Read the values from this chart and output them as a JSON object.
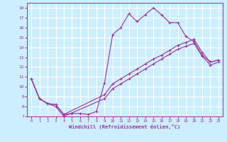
{
  "xlabel": "Windchill (Refroidissement éolien,°C)",
  "bg_color": "#cceeff",
  "line_color": "#993399",
  "grid_color": "#ffffff",
  "xlim": [
    -0.5,
    23.5
  ],
  "ylim": [
    7,
    18.5
  ],
  "xticks": [
    0,
    1,
    2,
    3,
    4,
    5,
    6,
    7,
    8,
    9,
    10,
    11,
    12,
    13,
    14,
    15,
    16,
    17,
    18,
    19,
    20,
    21,
    22,
    23
  ],
  "yticks": [
    7,
    8,
    9,
    10,
    11,
    12,
    13,
    14,
    15,
    16,
    17,
    18
  ],
  "line1_x": [
    0,
    1,
    2,
    3,
    4,
    5,
    6,
    7,
    8,
    9,
    10,
    11,
    12,
    13,
    14,
    15,
    16,
    17,
    18,
    19,
    20,
    21,
    22,
    23
  ],
  "line1_y": [
    10.8,
    8.8,
    8.3,
    8.2,
    7.2,
    7.3,
    7.3,
    7.2,
    7.5,
    10.4,
    15.3,
    16.0,
    17.4,
    16.6,
    17.3,
    18.0,
    17.3,
    16.5,
    16.5,
    15.1,
    14.6,
    13.2,
    12.5,
    12.7
  ],
  "line2_x": [
    0,
    1,
    2,
    3,
    4,
    9,
    10,
    11,
    12,
    13,
    14,
    15,
    16,
    17,
    18,
    19,
    20,
    21,
    22,
    23
  ],
  "line2_y": [
    10.8,
    8.8,
    8.3,
    8.2,
    7.2,
    9.2,
    10.3,
    10.8,
    11.3,
    11.8,
    12.3,
    12.8,
    13.2,
    13.7,
    14.2,
    14.5,
    14.8,
    13.5,
    12.5,
    12.7
  ],
  "line3_x": [
    0,
    1,
    2,
    3,
    4,
    9,
    10,
    11,
    12,
    13,
    14,
    15,
    16,
    17,
    18,
    19,
    20,
    21,
    22,
    23
  ],
  "line3_y": [
    10.8,
    8.8,
    8.3,
    8.0,
    7.0,
    8.8,
    9.8,
    10.3,
    10.8,
    11.3,
    11.8,
    12.3,
    12.8,
    13.3,
    13.8,
    14.1,
    14.4,
    13.1,
    12.2,
    12.5
  ]
}
